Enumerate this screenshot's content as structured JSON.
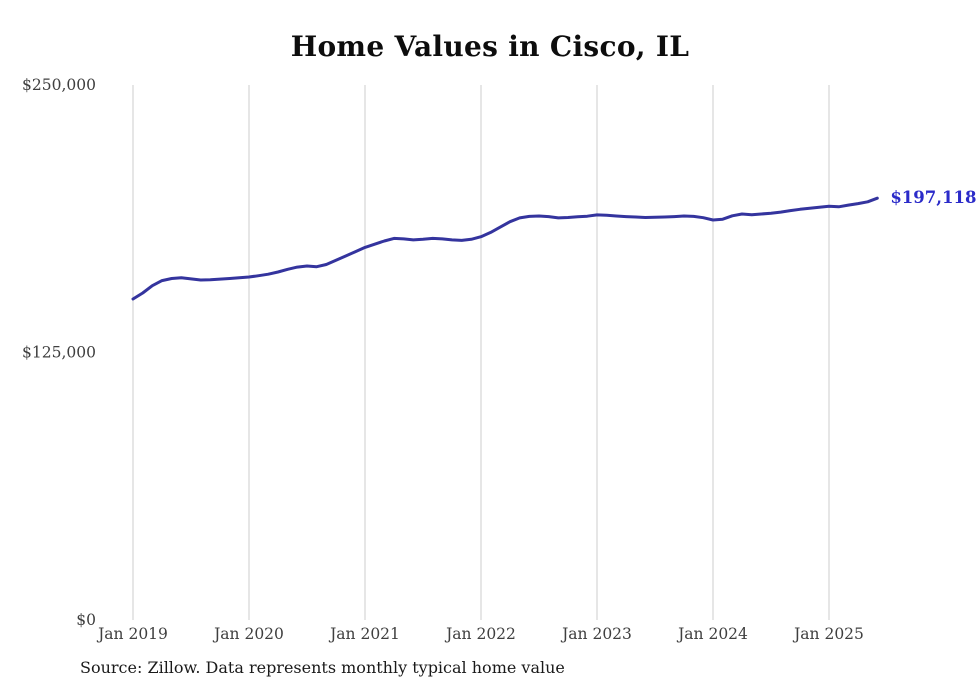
{
  "page": {
    "title": "Home Values in Cisco, IL",
    "source_note": "Source: Zillow. Data represents monthly typical home value",
    "end_label": "$197,118"
  },
  "chart_data": {
    "type": "line",
    "title": "Home Values in Cisco, IL",
    "xlabel": "",
    "ylabel": "",
    "ylim": [
      0,
      250000
    ],
    "grid": "vertical-only",
    "legend": "none",
    "end_annotation": "$197,118",
    "colors": {
      "line": "#34349e",
      "annotation": "#2b2bc9",
      "grid": "#cccccc",
      "axis_text": "#3f3f3f"
    },
    "x_ticks": [
      "Jan 2019",
      "Jan 2020",
      "Jan 2021",
      "Jan 2022",
      "Jan 2023",
      "Jan 2024",
      "Jan 2025"
    ],
    "y_ticks": [
      {
        "label": "$0",
        "value": 0
      },
      {
        "label": "$125,000",
        "value": 125000
      },
      {
        "label": "$250,000",
        "value": 250000
      }
    ],
    "series": [
      {
        "name": "Typical home value",
        "x": [
          "2019-01",
          "2019-02",
          "2019-03",
          "2019-04",
          "2019-05",
          "2019-06",
          "2019-07",
          "2019-08",
          "2019-09",
          "2019-10",
          "2019-11",
          "2019-12",
          "2020-01",
          "2020-02",
          "2020-03",
          "2020-04",
          "2020-05",
          "2020-06",
          "2020-07",
          "2020-08",
          "2020-09",
          "2020-10",
          "2020-11",
          "2020-12",
          "2021-01",
          "2021-02",
          "2021-03",
          "2021-04",
          "2021-05",
          "2021-06",
          "2021-07",
          "2021-08",
          "2021-09",
          "2021-10",
          "2021-11",
          "2021-12",
          "2022-01",
          "2022-02",
          "2022-03",
          "2022-04",
          "2022-05",
          "2022-06",
          "2022-07",
          "2022-08",
          "2022-09",
          "2022-10",
          "2022-11",
          "2022-12",
          "2023-01",
          "2023-02",
          "2023-03",
          "2023-04",
          "2023-05",
          "2023-06",
          "2023-07",
          "2023-08",
          "2023-09",
          "2023-10",
          "2023-11",
          "2023-12",
          "2024-01",
          "2024-02",
          "2024-03",
          "2024-04",
          "2024-05",
          "2024-06",
          "2024-07",
          "2024-08",
          "2024-09",
          "2024-10",
          "2024-11",
          "2024-12",
          "2025-01",
          "2025-02",
          "2025-03",
          "2025-04",
          "2025-05",
          "2025-06"
        ],
        "values": [
          150000,
          152800,
          156200,
          158600,
          159600,
          159900,
          159400,
          158900,
          159000,
          159300,
          159600,
          159900,
          160300,
          160900,
          161600,
          162600,
          163900,
          164900,
          165400,
          165100,
          166100,
          168100,
          170100,
          172100,
          174100,
          175600,
          177100,
          178300,
          178100,
          177600,
          177900,
          178300,
          178100,
          177600,
          177400,
          177900,
          179100,
          181100,
          183600,
          186100,
          187900,
          188600,
          188800,
          188500,
          187900,
          188100,
          188400,
          188700,
          189300,
          189100,
          188800,
          188500,
          188300,
          188100,
          188200,
          188300,
          188500,
          188800,
          188600,
          188000,
          186900,
          187300,
          188900,
          189700,
          189400,
          189700,
          190100,
          190600,
          191300,
          191900,
          192400,
          192900,
          193300,
          193100,
          193900,
          194600,
          195400,
          197118
        ]
      }
    ]
  }
}
